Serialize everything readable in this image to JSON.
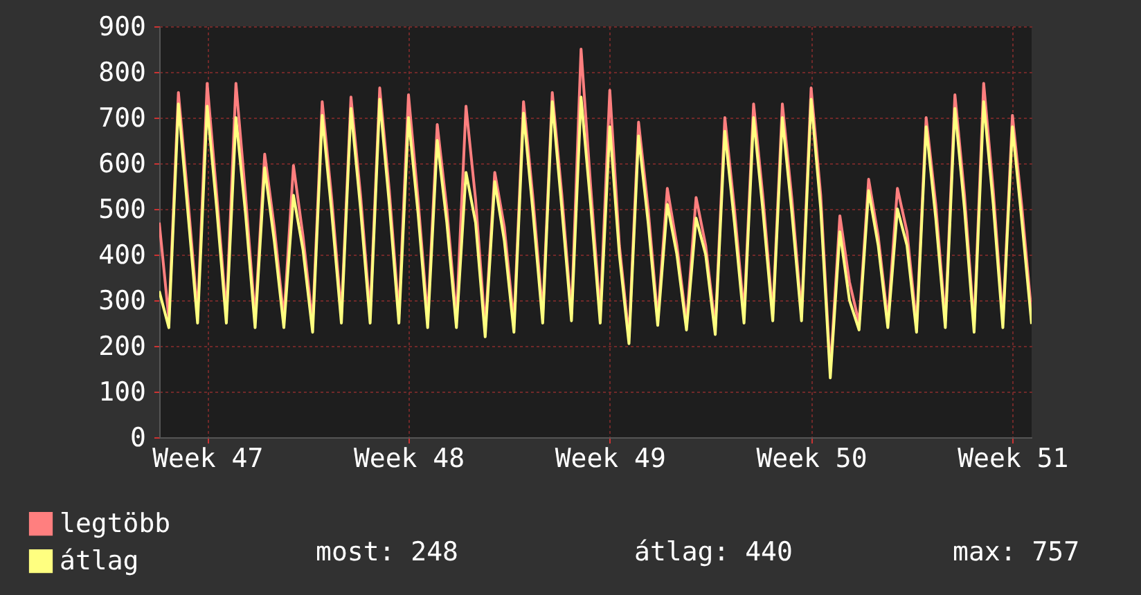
{
  "chart_data": {
    "type": "line",
    "categories": [
      null,
      null,
      null,
      null,
      null,
      "Week 47",
      null,
      null,
      null,
      null,
      null,
      null,
      null,
      null,
      null,
      null,
      null,
      null,
      null,
      null,
      null,
      null,
      null,
      null,
      null,
      null,
      "Week 48",
      null,
      null,
      null,
      null,
      null,
      null,
      null,
      null,
      null,
      null,
      null,
      null,
      null,
      null,
      null,
      null,
      null,
      null,
      null,
      null,
      "Week 49",
      null,
      null,
      null,
      null,
      null,
      null,
      null,
      null,
      null,
      null,
      null,
      null,
      null,
      null,
      null,
      null,
      null,
      null,
      null,
      null,
      "Week 50",
      null,
      null,
      null,
      null,
      null,
      null,
      null,
      null,
      null,
      null,
      null,
      null,
      null,
      null,
      null,
      null,
      null,
      null,
      null,
      null,
      "Week 51",
      null,
      null
    ],
    "series": [
      {
        "name": "legtöbb",
        "color": "#ff7f7f",
        "values": [
          470,
          260,
          755,
          520,
          270,
          775,
          530,
          270,
          775,
          530,
          260,
          620,
          460,
          260,
          595,
          440,
          250,
          735,
          520,
          270,
          745,
          530,
          270,
          765,
          540,
          270,
          750,
          520,
          260,
          685,
          500,
          260,
          725,
          520,
          240,
          580,
          460,
          250,
          735,
          520,
          270,
          755,
          530,
          270,
          850,
          550,
          270,
          760,
          420,
          220,
          690,
          500,
          260,
          545,
          420,
          250,
          525,
          420,
          240,
          700,
          500,
          270,
          730,
          520,
          270,
          730,
          520,
          270,
          765,
          530,
          145,
          485,
          340,
          250,
          565,
          440,
          255,
          545,
          450,
          245,
          700,
          510,
          255,
          750,
          530,
          245,
          775,
          540,
          255,
          705,
          500,
          270
        ]
      },
      {
        "name": "átlag",
        "color": "#ffff80",
        "values": [
          320,
          240,
          730,
          490,
          250,
          725,
          500,
          250,
          700,
          490,
          240,
          590,
          430,
          240,
          530,
          410,
          230,
          705,
          490,
          250,
          720,
          500,
          250,
          740,
          510,
          250,
          700,
          490,
          240,
          650,
          470,
          240,
          580,
          470,
          220,
          560,
          430,
          230,
          710,
          490,
          250,
          735,
          500,
          255,
          745,
          510,
          250,
          680,
          400,
          205,
          660,
          470,
          245,
          510,
          400,
          235,
          480,
          400,
          225,
          670,
          470,
          250,
          700,
          490,
          255,
          700,
          490,
          255,
          740,
          500,
          130,
          450,
          300,
          235,
          540,
          420,
          240,
          500,
          420,
          230,
          680,
          480,
          240,
          720,
          500,
          230,
          735,
          510,
          240,
          680,
          470,
          248
        ]
      }
    ],
    "ylim": [
      0,
      900
    ],
    "yticks": [
      0,
      100,
      200,
      300,
      400,
      500,
      600,
      700,
      800,
      900
    ],
    "grid": true,
    "legend": "bottom left",
    "annotations": [
      "most: 248",
      "átlag: 440",
      "max: 757"
    ]
  }
}
